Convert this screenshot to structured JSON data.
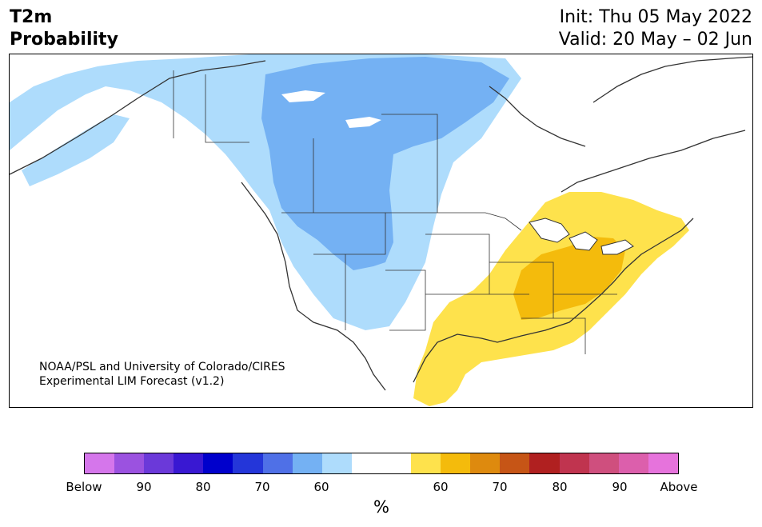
{
  "title": {
    "line1": "T2m",
    "line2": "Probability",
    "init": "Init: Thu 05 May 2022",
    "valid": "Valid: 20 May – 02 Jun"
  },
  "credit": {
    "line1": "NOAA/PSL and University of Colorado/CIRES",
    "line2": "Experimental LIM Forecast (v1.2)"
  },
  "colors": {
    "below_light": "#aedcfc",
    "below_medium": "#74b1f3",
    "above_light": "#fee24c",
    "above_medium": "#f4bb0c",
    "land": "#ffffff",
    "border": "#333333"
  },
  "legend": {
    "unit": "%",
    "swatches": [
      "#d576eb",
      "#9b52e0",
      "#6b39d9",
      "#3918d2",
      "#0000cc",
      "#2436d9",
      "#4f70e7",
      "#74b1f3",
      "#aedcfc",
      "#ffffff",
      "#ffffff",
      "#fee24c",
      "#f4bb0c",
      "#de8a0e",
      "#c65516",
      "#b02020",
      "#c0344f",
      "#cf4f7e",
      "#dc5fac",
      "#e673dc"
    ],
    "labels": [
      "Below",
      "90",
      "80",
      "70",
      "60",
      "60",
      "70",
      "80",
      "90",
      "Above"
    ]
  }
}
